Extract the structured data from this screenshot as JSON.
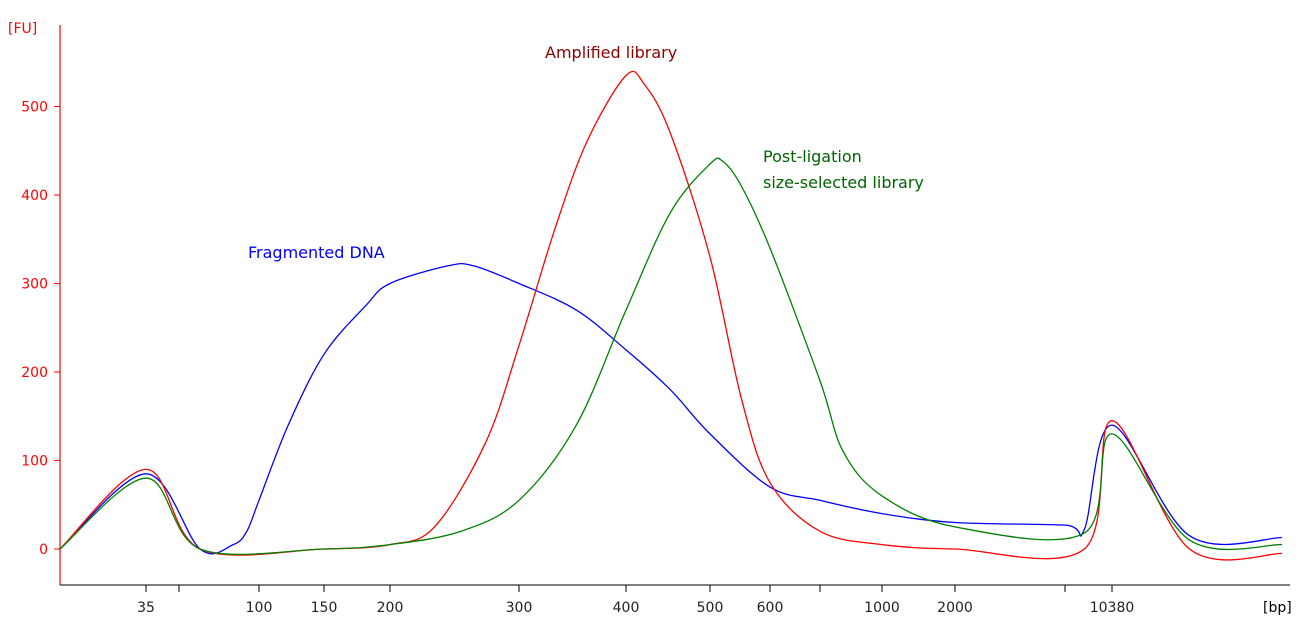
{
  "chart_data": {
    "type": "line",
    "title": "",
    "ylabel": "[FU]",
    "xlabel": "[bp]",
    "ylim": [
      -40,
      580
    ],
    "y_ticks": [
      0,
      100,
      200,
      300,
      400,
      500
    ],
    "x_scale": "sizing ladder (non-linear, migration-time based)",
    "x_ticks": [
      {
        "label": "35",
        "bp": 35
      },
      {
        "label": "",
        "bp": 50
      },
      {
        "label": "100",
        "bp": 100
      },
      {
        "label": "150",
        "bp": 150
      },
      {
        "label": "200",
        "bp": 200
      },
      {
        "label": "300",
        "bp": 300
      },
      {
        "label": "400",
        "bp": 400
      },
      {
        "label": "500",
        "bp": 500
      },
      {
        "label": "600",
        "bp": 600
      },
      {
        "label": "",
        "bp": 700
      },
      {
        "label": "1000",
        "bp": 1000
      },
      {
        "label": "2000",
        "bp": 2000
      },
      {
        "label": "",
        "bp": 3000
      },
      {
        "label": "10380",
        "bp": 10380
      }
    ],
    "grid": false,
    "axis_color": "#ff0000",
    "series": [
      {
        "name": "Fragmented DNA",
        "color": "#0000ff",
        "points": [
          [
            20,
            0
          ],
          [
            35,
            85
          ],
          [
            60,
            0
          ],
          [
            80,
            5
          ],
          [
            90,
            20
          ],
          [
            100,
            55
          ],
          [
            120,
            140
          ],
          [
            150,
            220
          ],
          [
            180,
            275
          ],
          [
            200,
            300
          ],
          [
            240,
            320
          ],
          [
            260,
            320
          ],
          [
            300,
            300
          ],
          [
            350,
            270
          ],
          [
            400,
            225
          ],
          [
            450,
            180
          ],
          [
            500,
            130
          ],
          [
            600,
            70
          ],
          [
            700,
            55
          ],
          [
            1000,
            40
          ],
          [
            2000,
            30
          ],
          [
            3000,
            27
          ],
          [
            5000,
            22
          ],
          [
            10380,
            140
          ],
          [
            14000,
            15
          ],
          [
            20000,
            13
          ]
        ]
      },
      {
        "name": "Amplified library",
        "color": "#ff0000",
        "points": [
          [
            20,
            0
          ],
          [
            35,
            90
          ],
          [
            60,
            0
          ],
          [
            150,
            0
          ],
          [
            200,
            5
          ],
          [
            230,
            25
          ],
          [
            270,
            120
          ],
          [
            300,
            230
          ],
          [
            330,
            360
          ],
          [
            360,
            460
          ],
          [
            400,
            535
          ],
          [
            420,
            525
          ],
          [
            450,
            470
          ],
          [
            500,
            330
          ],
          [
            550,
            170
          ],
          [
            600,
            75
          ],
          [
            700,
            20
          ],
          [
            1000,
            5
          ],
          [
            2000,
            0
          ],
          [
            5000,
            0
          ],
          [
            10380,
            145
          ],
          [
            14000,
            0
          ],
          [
            20000,
            -5
          ]
        ]
      },
      {
        "name": "Post-ligation size-selected library",
        "color": "#008000",
        "points": [
          [
            20,
            0
          ],
          [
            35,
            80
          ],
          [
            60,
            0
          ],
          [
            150,
            0
          ],
          [
            200,
            5
          ],
          [
            250,
            20
          ],
          [
            300,
            55
          ],
          [
            350,
            140
          ],
          [
            400,
            270
          ],
          [
            450,
            380
          ],
          [
            500,
            435
          ],
          [
            520,
            438
          ],
          [
            550,
            410
          ],
          [
            600,
            340
          ],
          [
            700,
            190
          ],
          [
            800,
            110
          ],
          [
            1000,
            60
          ],
          [
            2000,
            25
          ],
          [
            5000,
            18
          ],
          [
            10380,
            130
          ],
          [
            14000,
            10
          ],
          [
            20000,
            5
          ]
        ]
      }
    ],
    "annotations": [
      {
        "text": "Fragmented DNA",
        "color": "#0000ff"
      },
      {
        "text": "Amplified library",
        "color": "#8b0000"
      },
      {
        "text": "Post-ligation",
        "color": "#006400"
      },
      {
        "text": "size-selected library",
        "color": "#006400"
      }
    ]
  }
}
